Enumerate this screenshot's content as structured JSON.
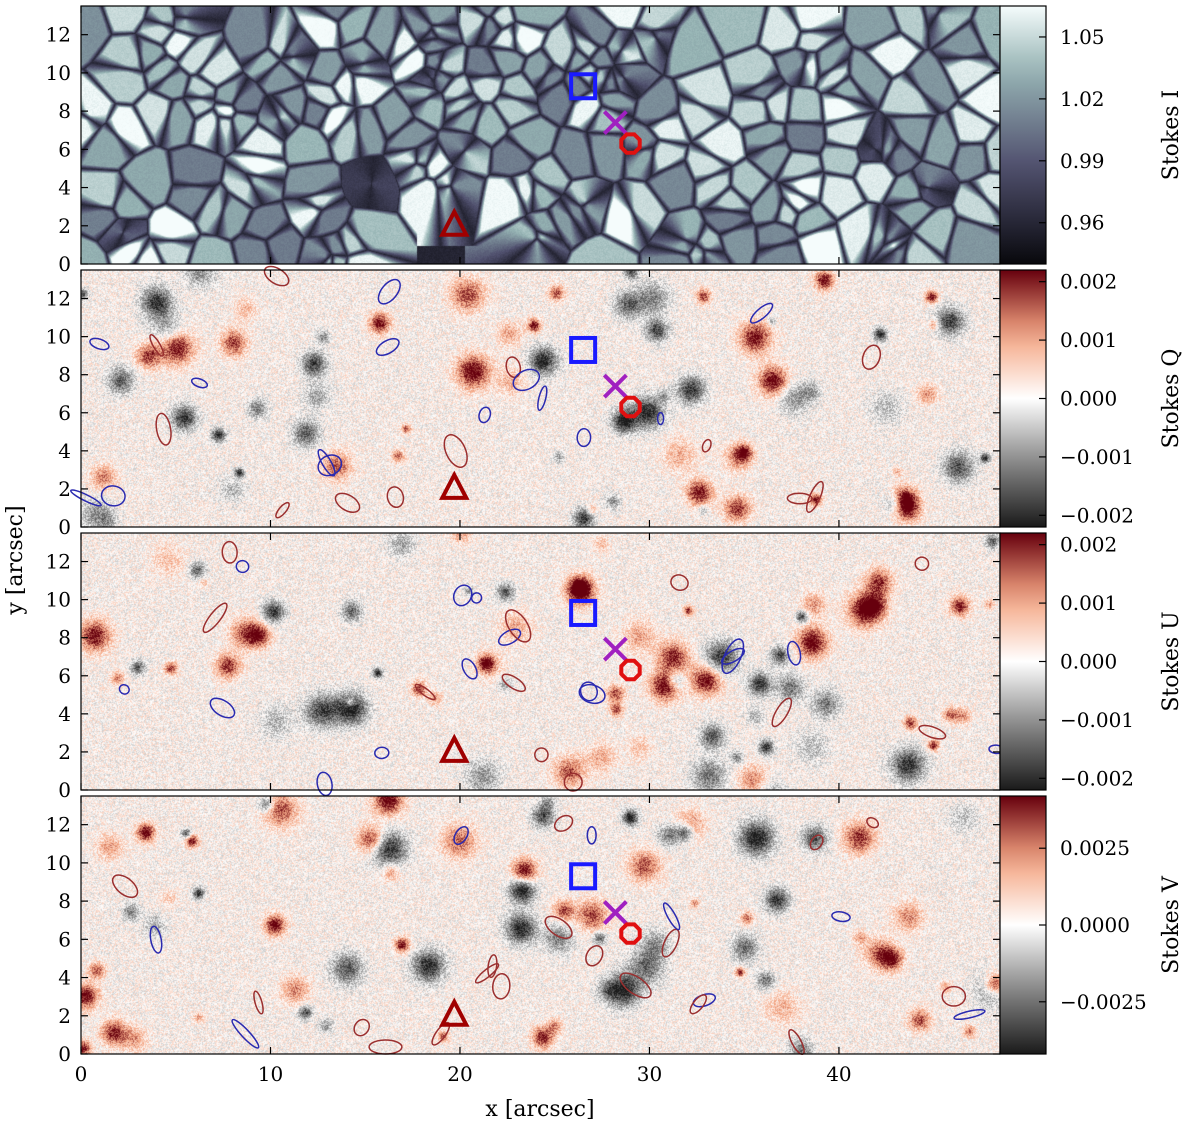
{
  "chart_data": {
    "type": "heatmap",
    "xlabel": "x [arcsec]",
    "ylabel": "y [arcsec]",
    "xlim": [
      0,
      48.5
    ],
    "ylim": [
      0,
      13.5
    ],
    "x_ticks": [
      "0",
      "10",
      "20",
      "30",
      "40"
    ],
    "x_tick_values": [
      0,
      10,
      20,
      30,
      40
    ],
    "y_ticks": [
      "0",
      "2",
      "4",
      "6",
      "8",
      "10",
      "12"
    ],
    "y_tick_values": [
      0,
      2,
      4,
      6,
      8,
      10,
      12
    ],
    "colors": {
      "marker_square": "#1a1aff",
      "marker_cross": "#a020c0",
      "marker_octagon": "#e01010",
      "marker_triangle": "#a00000",
      "contour_positive": "#9a2f2f",
      "contour_negative": "#2a2ab0"
    },
    "markers": [
      {
        "shape": "square",
        "x": 26.5,
        "y": 9.3
      },
      {
        "shape": "cross",
        "x": 28.2,
        "y": 7.4
      },
      {
        "shape": "octagon",
        "x": 29.0,
        "y": 6.3
      },
      {
        "shape": "triangle",
        "x": 19.7,
        "y": 2.0
      }
    ],
    "panels": [
      {
        "name": "stokes-i",
        "colorbar_label": "Stokes I",
        "colormap": "bone",
        "range": [
          0.94,
          1.065
        ],
        "colorbar_ticks": [
          "0.96",
          "0.99",
          "1.02",
          "1.05"
        ],
        "colorbar_tick_values": [
          0.96,
          0.99,
          1.02,
          1.05
        ],
        "contours": false
      },
      {
        "name": "stokes-q",
        "colorbar_label": "Stokes Q",
        "colormap": "RdGy_r",
        "range": [
          -0.0022,
          0.0022
        ],
        "colorbar_ticks": [
          "0.002",
          "0.001",
          "0.000",
          "−0.001",
          "−0.002"
        ],
        "colorbar_tick_values": [
          0.002,
          0.001,
          0.0,
          -0.001,
          -0.002
        ],
        "contours": true
      },
      {
        "name": "stokes-u",
        "colorbar_label": "Stokes U",
        "colormap": "RdGy_r",
        "range": [
          -0.0022,
          0.0022
        ],
        "colorbar_ticks": [
          "0.002",
          "0.001",
          "0.000",
          "−0.001",
          "−0.002"
        ],
        "colorbar_tick_values": [
          0.002,
          0.001,
          0.0,
          -0.001,
          -0.002
        ],
        "contours": true
      },
      {
        "name": "stokes-v",
        "colorbar_label": "Stokes V",
        "colormap": "RdGy_r",
        "range": [
          -0.0042,
          0.0042
        ],
        "colorbar_ticks": [
          "0.0025",
          "0.0000",
          "−0.0025"
        ],
        "colorbar_tick_values": [
          0.0025,
          0.0,
          -0.0025
        ],
        "contours": true
      }
    ]
  }
}
